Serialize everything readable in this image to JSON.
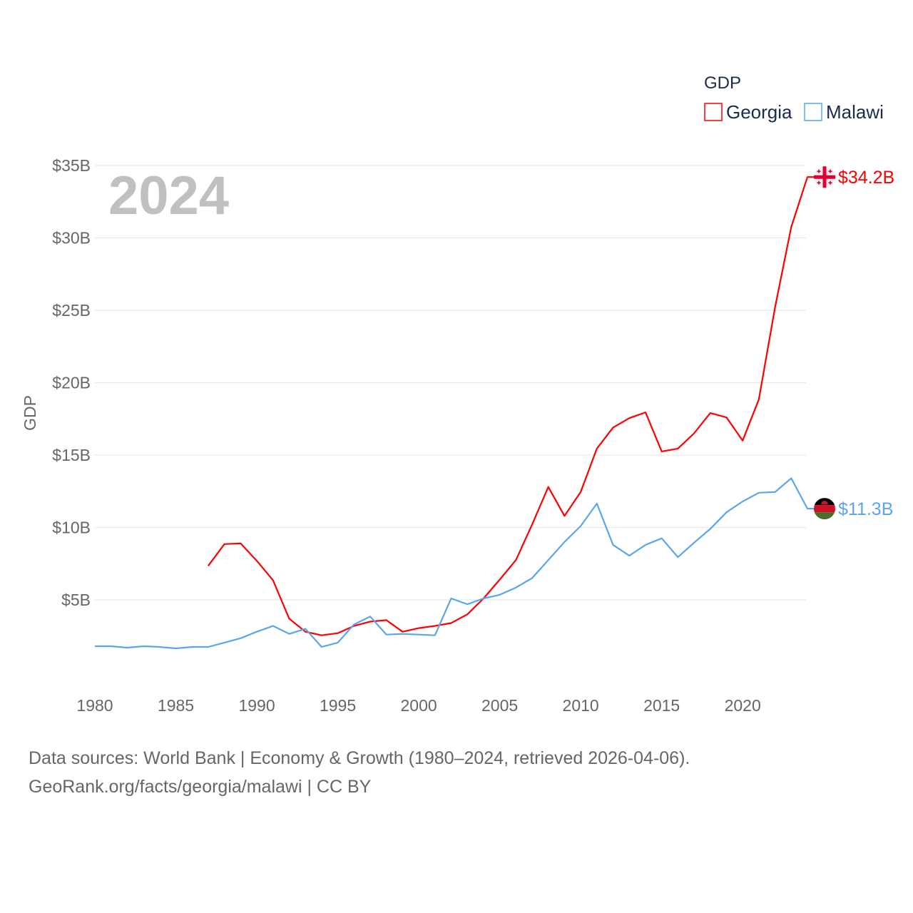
{
  "chart_data": {
    "type": "line",
    "year_label": "2024",
    "ylabel": "GDP",
    "legend_title": "GDP",
    "legend_placement": "top-right",
    "x": [
      1980,
      1981,
      1982,
      1983,
      1984,
      1985,
      1986,
      1987,
      1988,
      1989,
      1990,
      1991,
      1992,
      1993,
      1994,
      1995,
      1996,
      1997,
      1998,
      1999,
      2000,
      2001,
      2002,
      2003,
      2004,
      2005,
      2006,
      2007,
      2008,
      2009,
      2010,
      2011,
      2012,
      2013,
      2014,
      2015,
      2016,
      2017,
      2018,
      2019,
      2020,
      2021,
      2022,
      2023,
      2024
    ],
    "xlim": [
      1980,
      2024
    ],
    "ylim": [
      0,
      35
    ],
    "x_ticks": [
      "1980",
      "1985",
      "1990",
      "1995",
      "2000",
      "2005",
      "2010",
      "2015",
      "2020"
    ],
    "x_tick_values": [
      1980,
      1985,
      1990,
      1995,
      2000,
      2005,
      2010,
      2015,
      2020
    ],
    "y_ticks": [
      "$5B",
      "$10B",
      "$15B",
      "$20B",
      "$25B",
      "$30B",
      "$35B"
    ],
    "y_tick_values": [
      5,
      10,
      15,
      20,
      25,
      30,
      35
    ],
    "series": [
      {
        "name": "Georgia",
        "color": "#ff0000",
        "end_label": "$34.2B",
        "values": [
          null,
          null,
          null,
          null,
          null,
          null,
          null,
          7.35,
          8.85,
          8.9,
          7.7,
          6.35,
          3.7,
          2.8,
          2.55,
          2.7,
          3.2,
          3.5,
          3.6,
          2.8,
          3.05,
          3.2,
          3.4,
          4.0,
          5.1,
          6.4,
          7.75,
          10.2,
          12.8,
          10.8,
          12.45,
          15.45,
          16.9,
          17.55,
          17.95,
          15.25,
          15.45,
          16.5,
          17.9,
          17.6,
          16.0,
          18.85,
          25.2,
          30.75,
          34.2
        ]
      },
      {
        "name": "Malawi",
        "color": "#5aa5ec",
        "end_label": "$11.3B",
        "values": [
          1.8,
          1.8,
          1.7,
          1.8,
          1.75,
          1.65,
          1.75,
          1.75,
          2.05,
          2.35,
          2.8,
          3.2,
          2.65,
          3.0,
          1.75,
          2.05,
          3.3,
          3.85,
          2.6,
          2.65,
          2.6,
          2.55,
          5.1,
          4.7,
          5.1,
          5.35,
          5.85,
          6.5,
          7.75,
          9.0,
          10.1,
          11.65,
          8.8,
          8.05,
          8.8,
          9.25,
          7.95,
          8.95,
          9.9,
          11.05,
          11.8,
          12.4,
          12.45,
          13.4,
          11.3
        ]
      }
    ]
  },
  "footer": {
    "line1": "Data sources: World Bank | Economy & Growth (1980–2024, retrieved 2026-04-06).",
    "line2": "GeoRank.org/facts/georgia/malawi | CC BY"
  }
}
